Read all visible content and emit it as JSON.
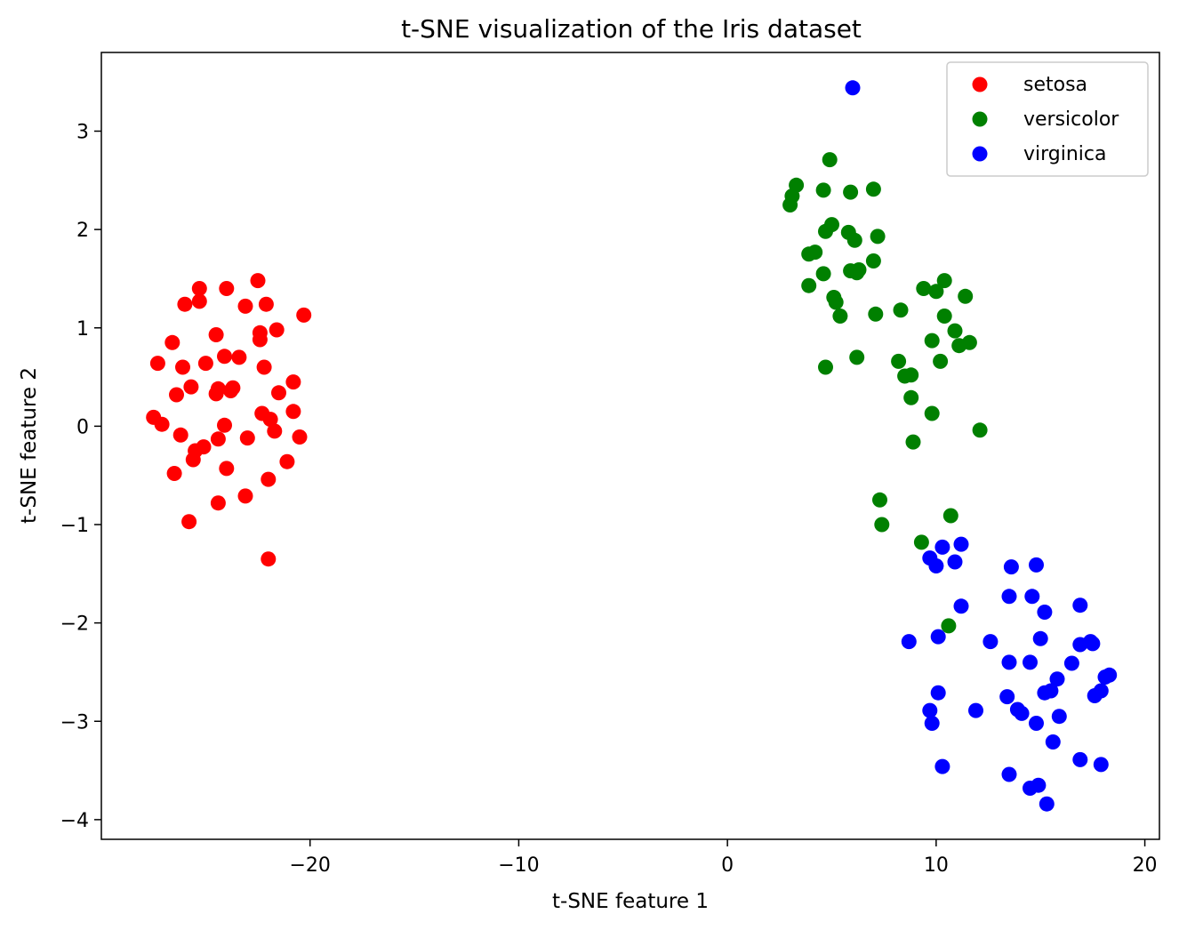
{
  "chart_data": {
    "type": "scatter",
    "title": "t-SNE visualization of the Iris dataset",
    "xlabel": "t-SNE feature 1",
    "ylabel": "t-SNE feature 2",
    "xlim": [
      -30.0,
      20.7
    ],
    "ylim": [
      -4.2,
      3.8
    ],
    "x_ticks": [
      -20,
      -10,
      0,
      10,
      20
    ],
    "y_ticks": [
      -4,
      -3,
      -2,
      -1,
      0,
      1,
      2,
      3
    ],
    "x_tick_labels": [
      "−20",
      "−10",
      "0",
      "10",
      "20"
    ],
    "y_tick_labels": [
      "−4",
      "−3",
      "−2",
      "−1",
      "0",
      "1",
      "2",
      "3"
    ],
    "grid": false,
    "legend_position": "top-right",
    "series": [
      {
        "name": "setosa",
        "color": "#ff0000",
        "points": [
          [
            -22.5,
            1.48
          ],
          [
            -25.3,
            1.4
          ],
          [
            -24.0,
            1.4
          ],
          [
            -26.0,
            1.24
          ],
          [
            -25.3,
            1.27
          ],
          [
            -23.1,
            1.22
          ],
          [
            -22.1,
            1.24
          ],
          [
            -20.3,
            1.13
          ],
          [
            -21.6,
            0.98
          ],
          [
            -22.4,
            0.95
          ],
          [
            -22.4,
            0.88
          ],
          [
            -24.5,
            0.93
          ],
          [
            -26.6,
            0.85
          ],
          [
            -27.3,
            0.64
          ],
          [
            -26.1,
            0.6
          ],
          [
            -25.0,
            0.64
          ],
          [
            -24.1,
            0.71
          ],
          [
            -23.4,
            0.7
          ],
          [
            -22.2,
            0.6
          ],
          [
            -26.4,
            0.32
          ],
          [
            -25.7,
            0.4
          ],
          [
            -24.5,
            0.33
          ],
          [
            -24.4,
            0.38
          ],
          [
            -23.8,
            0.36
          ],
          [
            -23.7,
            0.39
          ],
          [
            -21.5,
            0.34
          ],
          [
            -20.8,
            0.45
          ],
          [
            -20.8,
            0.15
          ],
          [
            -27.5,
            0.09
          ],
          [
            -27.1,
            0.02
          ],
          [
            -24.1,
            0.01
          ],
          [
            -22.3,
            0.13
          ],
          [
            -21.9,
            0.07
          ],
          [
            -21.7,
            -0.05
          ],
          [
            -20.5,
            -0.11
          ],
          [
            -26.2,
            -0.09
          ],
          [
            -24.4,
            -0.13
          ],
          [
            -23.0,
            -0.12
          ],
          [
            -25.1,
            -0.21
          ],
          [
            -25.5,
            -0.25
          ],
          [
            -25.6,
            -0.34
          ],
          [
            -21.1,
            -0.36
          ],
          [
            -24.0,
            -0.43
          ],
          [
            -26.5,
            -0.48
          ],
          [
            -22.0,
            -0.54
          ],
          [
            -23.1,
            -0.71
          ],
          [
            -24.4,
            -0.78
          ],
          [
            -25.8,
            -0.97
          ],
          [
            -22.0,
            -1.35
          ]
        ]
      },
      {
        "name": "versicolor",
        "color": "#008000",
        "points": [
          [
            4.9,
            2.71
          ],
          [
            3.3,
            2.45
          ],
          [
            3.1,
            2.34
          ],
          [
            3.0,
            2.25
          ],
          [
            4.6,
            2.4
          ],
          [
            5.9,
            2.38
          ],
          [
            7.0,
            2.41
          ],
          [
            5.0,
            2.05
          ],
          [
            4.7,
            1.98
          ],
          [
            5.8,
            1.97
          ],
          [
            6.1,
            1.89
          ],
          [
            7.2,
            1.93
          ],
          [
            3.9,
            1.75
          ],
          [
            4.2,
            1.77
          ],
          [
            4.6,
            1.55
          ],
          [
            5.9,
            1.58
          ],
          [
            6.3,
            1.59
          ],
          [
            6.2,
            1.56
          ],
          [
            7.0,
            1.68
          ],
          [
            3.9,
            1.43
          ],
          [
            5.1,
            1.31
          ],
          [
            5.2,
            1.26
          ],
          [
            5.4,
            1.12
          ],
          [
            7.1,
            1.14
          ],
          [
            8.3,
            1.18
          ],
          [
            9.4,
            1.4
          ],
          [
            10.0,
            1.37
          ],
          [
            10.4,
            1.48
          ],
          [
            11.4,
            1.32
          ],
          [
            10.4,
            1.12
          ],
          [
            10.9,
            0.97
          ],
          [
            11.1,
            0.82
          ],
          [
            11.6,
            0.85
          ],
          [
            9.8,
            0.87
          ],
          [
            10.2,
            0.66
          ],
          [
            6.2,
            0.7
          ],
          [
            4.7,
            0.6
          ],
          [
            8.2,
            0.66
          ],
          [
            8.5,
            0.51
          ],
          [
            8.8,
            0.52
          ],
          [
            8.8,
            0.29
          ],
          [
            9.8,
            0.13
          ],
          [
            8.9,
            -0.16
          ],
          [
            12.1,
            -0.04
          ],
          [
            7.3,
            -0.75
          ],
          [
            7.4,
            -1.0
          ],
          [
            10.7,
            -0.91
          ],
          [
            9.3,
            -1.18
          ],
          [
            10.6,
            -2.03
          ]
        ]
      },
      {
        "name": "virginica",
        "color": "#0000ff",
        "points": [
          [
            6.0,
            3.44
          ],
          [
            9.7,
            -1.34
          ],
          [
            10.0,
            -1.42
          ],
          [
            10.3,
            -1.23
          ],
          [
            10.9,
            -1.38
          ],
          [
            11.2,
            -1.2
          ],
          [
            13.6,
            -1.43
          ],
          [
            14.8,
            -1.41
          ],
          [
            13.5,
            -1.73
          ],
          [
            14.6,
            -1.73
          ],
          [
            16.9,
            -1.82
          ],
          [
            11.2,
            -1.83
          ],
          [
            15.2,
            -1.89
          ],
          [
            8.7,
            -2.19
          ],
          [
            10.1,
            -2.14
          ],
          [
            12.6,
            -2.19
          ],
          [
            15.0,
            -2.16
          ],
          [
            16.9,
            -2.22
          ],
          [
            17.4,
            -2.19
          ],
          [
            17.5,
            -2.21
          ],
          [
            13.5,
            -2.4
          ],
          [
            14.5,
            -2.4
          ],
          [
            16.5,
            -2.41
          ],
          [
            15.8,
            -2.57
          ],
          [
            18.1,
            -2.55
          ],
          [
            18.3,
            -2.53
          ],
          [
            10.1,
            -2.71
          ],
          [
            13.4,
            -2.75
          ],
          [
            15.2,
            -2.71
          ],
          [
            15.5,
            -2.69
          ],
          [
            17.6,
            -2.74
          ],
          [
            17.9,
            -2.69
          ],
          [
            9.7,
            -2.89
          ],
          [
            11.9,
            -2.89
          ],
          [
            13.9,
            -2.88
          ],
          [
            14.1,
            -2.92
          ],
          [
            15.9,
            -2.95
          ],
          [
            9.8,
            -3.02
          ],
          [
            14.8,
            -3.02
          ],
          [
            15.6,
            -3.21
          ],
          [
            16.9,
            -3.39
          ],
          [
            17.9,
            -3.44
          ],
          [
            10.3,
            -3.46
          ],
          [
            13.5,
            -3.54
          ],
          [
            14.5,
            -3.68
          ],
          [
            14.9,
            -3.65
          ],
          [
            15.3,
            -3.84
          ]
        ]
      }
    ]
  }
}
